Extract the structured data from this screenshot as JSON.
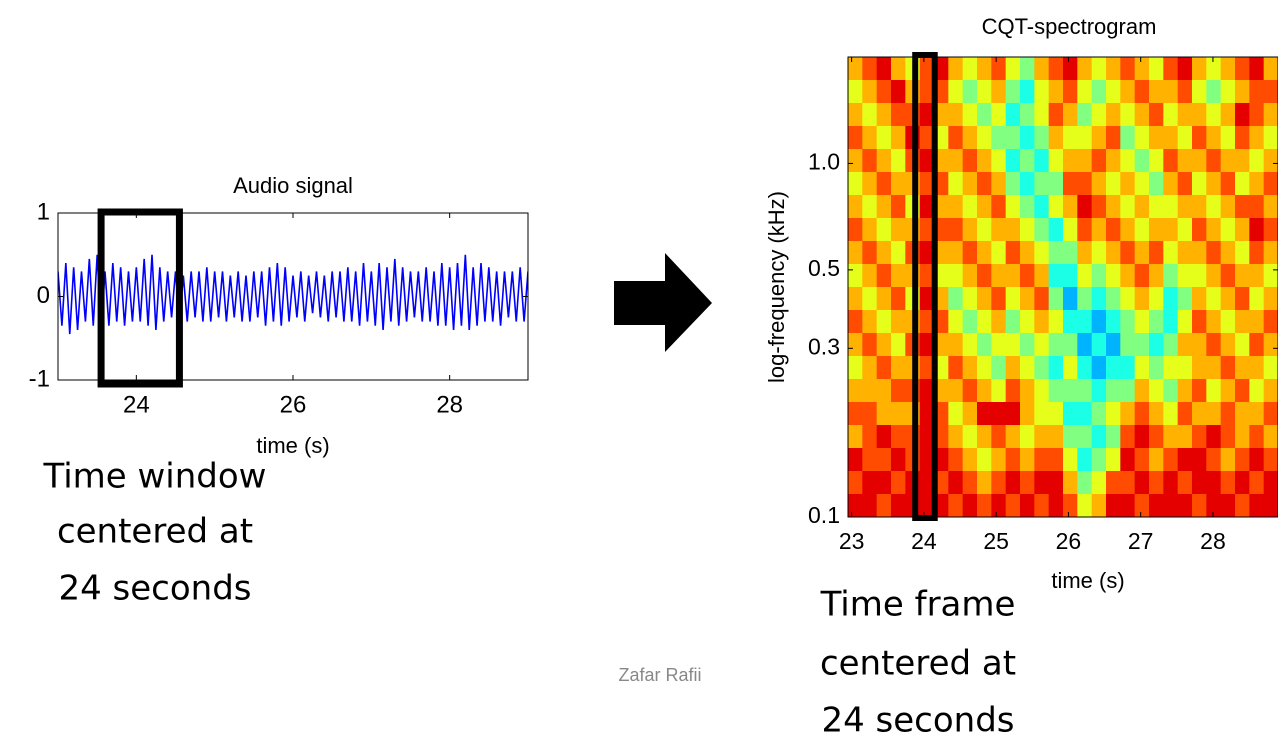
{
  "chart_data": [
    {
      "type": "line",
      "title": "Audio signal",
      "xlabel": "time (s)",
      "color": "#0000ff",
      "xlim": [
        23,
        29
      ],
      "xticks": [
        24,
        26,
        28
      ],
      "ylim": [
        -1,
        1
      ],
      "yticks": [
        -1,
        0,
        1
      ],
      "x": [
        23,
        23.05,
        23.1,
        23.15,
        23.2,
        23.25,
        23.3,
        23.35,
        23.4,
        23.45,
        23.5,
        23.55,
        23.6,
        23.65,
        23.7,
        23.75,
        23.8,
        23.85,
        23.9,
        23.95,
        24,
        24.05,
        24.1,
        24.15,
        24.2,
        24.25,
        24.3,
        24.35,
        24.4,
        24.45,
        24.5,
        24.55,
        24.6,
        24.65,
        24.7,
        24.75,
        24.8,
        24.85,
        24.9,
        24.95,
        25,
        25.05,
        25.1,
        25.15,
        25.2,
        25.25,
        25.3,
        25.35,
        25.4,
        25.45,
        25.5,
        25.55,
        25.6,
        25.65,
        25.7,
        25.75,
        25.8,
        25.85,
        25.9,
        25.95,
        26,
        26.05,
        26.1,
        26.15,
        26.2,
        26.25,
        26.3,
        26.35,
        26.4,
        26.45,
        26.5,
        26.55,
        26.6,
        26.65,
        26.7,
        26.75,
        26.8,
        26.85,
        26.9,
        26.95,
        27,
        27.05,
        27.1,
        27.15,
        27.2,
        27.25,
        27.3,
        27.35,
        27.4,
        27.45,
        27.5,
        27.55,
        27.6,
        27.65,
        27.7,
        27.75,
        27.8,
        27.85,
        27.9,
        27.95,
        28,
        28.05,
        28.1,
        28.15,
        28.2,
        28.25,
        28.3,
        28.35,
        28.4,
        28.45,
        28.5,
        28.55,
        28.6,
        28.65,
        28.7,
        28.75,
        28.8,
        28.85,
        28.9,
        28.95,
        29
      ],
      "values": [
        0.3,
        -0.35,
        0.4,
        -0.45,
        0.35,
        -0.4,
        0.3,
        -0.3,
        0.45,
        -0.35,
        0.5,
        -0.4,
        0.3,
        -0.35,
        0.4,
        -0.3,
        0.35,
        -0.35,
        0.3,
        -0.3,
        0.35,
        -0.3,
        0.45,
        -0.35,
        0.5,
        -0.4,
        0.35,
        -0.3,
        0.3,
        -0.25,
        0.3,
        -0.3,
        0.25,
        -0.3,
        0.3,
        -0.25,
        0.3,
        -0.3,
        0.35,
        -0.3,
        0.3,
        -0.25,
        0.3,
        -0.3,
        0.25,
        -0.25,
        0.3,
        -0.3,
        0.25,
        -0.3,
        0.3,
        -0.25,
        0.3,
        -0.35,
        0.35,
        -0.3,
        0.4,
        -0.35,
        0.35,
        -0.3,
        0.25,
        -0.25,
        0.3,
        -0.3,
        0.25,
        -0.2,
        0.3,
        -0.25,
        0.25,
        -0.3,
        0.3,
        -0.25,
        0.3,
        -0.3,
        0.35,
        -0.3,
        0.3,
        -0.35,
        0.4,
        -0.3,
        0.3,
        -0.35,
        0.4,
        -0.4,
        0.35,
        -0.3,
        0.45,
        -0.35,
        0.35,
        -0.3,
        0.3,
        -0.25,
        0.3,
        -0.3,
        0.35,
        -0.3,
        0.3,
        -0.35,
        0.4,
        -0.35,
        0.35,
        -0.4,
        0.4,
        -0.35,
        0.5,
        -0.4,
        0.35,
        -0.35,
        0.4,
        -0.3,
        0.35,
        -0.3,
        0.3,
        -0.35,
        0.3,
        -0.25,
        0.3,
        -0.3,
        0.35,
        -0.3,
        0.3
      ],
      "highlight_x": [
        23.55,
        24.55
      ],
      "annotation": [
        "Time window",
        "centered at",
        "24 seconds"
      ]
    },
    {
      "type": "heatmap",
      "title": "CQT-spectrogram",
      "xlabel": "time (s)",
      "ylabel": "log-frequency (kHz)",
      "xlim": [
        22.95,
        28.9
      ],
      "xticks": [
        23,
        24,
        25,
        26,
        27,
        28
      ],
      "ylim": [
        0.1,
        2
      ],
      "yscale": "log",
      "yticks": [
        0.1,
        0.3,
        0.5,
        {
          "value": 1,
          "label": "1.0"
        }
      ],
      "colormap": "jet",
      "zlim": [
        0,
        10
      ],
      "z": [
        [
          7,
          8,
          9,
          7,
          6,
          8,
          9,
          7,
          6,
          7,
          8,
          6,
          5,
          7,
          8,
          9,
          7,
          6,
          7,
          8,
          7,
          6,
          8,
          9,
          7,
          6,
          7,
          8,
          9,
          7
        ],
        [
          6,
          7,
          8,
          9,
          7,
          8,
          8,
          6,
          5,
          6,
          7,
          5,
          4,
          6,
          7,
          8,
          6,
          5,
          6,
          7,
          8,
          7,
          7,
          8,
          6,
          5,
          6,
          7,
          8,
          8
        ],
        [
          7,
          6,
          7,
          8,
          8,
          9,
          7,
          7,
          6,
          5,
          6,
          4,
          5,
          6,
          8,
          7,
          5,
          6,
          7,
          6,
          7,
          8,
          6,
          7,
          7,
          6,
          7,
          9,
          8,
          7
        ],
        [
          8,
          7,
          6,
          7,
          9,
          8,
          6,
          8,
          7,
          6,
          5,
          5,
          4,
          5,
          7,
          6,
          6,
          7,
          8,
          5,
          6,
          7,
          7,
          6,
          8,
          7,
          6,
          8,
          7,
          6
        ],
        [
          7,
          8,
          7,
          6,
          8,
          9,
          7,
          7,
          8,
          7,
          6,
          4,
          5,
          4,
          6,
          7,
          7,
          8,
          7,
          6,
          5,
          6,
          8,
          7,
          7,
          8,
          7,
          7,
          6,
          7
        ],
        [
          6,
          7,
          8,
          7,
          7,
          8,
          8,
          6,
          7,
          8,
          7,
          5,
          4,
          5,
          5,
          8,
          8,
          7,
          6,
          7,
          6,
          5,
          7,
          8,
          6,
          7,
          8,
          6,
          7,
          8
        ],
        [
          7,
          6,
          7,
          8,
          6,
          9,
          7,
          7,
          6,
          7,
          8,
          6,
          5,
          4,
          6,
          7,
          9,
          8,
          7,
          6,
          7,
          6,
          6,
          7,
          7,
          6,
          7,
          8,
          8,
          7
        ],
        [
          8,
          7,
          6,
          7,
          7,
          8,
          8,
          8,
          7,
          6,
          7,
          7,
          6,
          5,
          4,
          6,
          8,
          7,
          8,
          7,
          6,
          7,
          7,
          6,
          8,
          7,
          6,
          7,
          9,
          8
        ],
        [
          7,
          8,
          7,
          6,
          8,
          9,
          7,
          7,
          8,
          7,
          6,
          8,
          7,
          6,
          5,
          5,
          7,
          6,
          7,
          8,
          7,
          8,
          6,
          7,
          7,
          8,
          7,
          6,
          8,
          7
        ],
        [
          6,
          7,
          8,
          7,
          7,
          8,
          6,
          6,
          7,
          8,
          7,
          7,
          8,
          7,
          4,
          4,
          6,
          5,
          6,
          7,
          8,
          7,
          5,
          6,
          6,
          7,
          8,
          7,
          7,
          6
        ],
        [
          7,
          6,
          7,
          8,
          6,
          9,
          7,
          5,
          6,
          7,
          8,
          6,
          7,
          8,
          5,
          3,
          5,
          4,
          5,
          6,
          7,
          6,
          4,
          5,
          7,
          6,
          7,
          8,
          6,
          7
        ],
        [
          8,
          7,
          6,
          7,
          7,
          8,
          8,
          6,
          5,
          6,
          7,
          5,
          6,
          7,
          6,
          4,
          4,
          3,
          4,
          5,
          6,
          5,
          4,
          6,
          8,
          7,
          6,
          7,
          7,
          8
        ],
        [
          7,
          8,
          7,
          6,
          8,
          9,
          7,
          7,
          6,
          5,
          6,
          6,
          5,
          6,
          5,
          5,
          3,
          4,
          3,
          5,
          5,
          4,
          5,
          7,
          7,
          8,
          7,
          6,
          8,
          7
        ],
        [
          6,
          7,
          8,
          7,
          7,
          8,
          6,
          8,
          7,
          6,
          5,
          7,
          6,
          5,
          4,
          6,
          4,
          3,
          4,
          4,
          6,
          5,
          6,
          6,
          7,
          7,
          8,
          7,
          7,
          6
        ],
        [
          7,
          7,
          7,
          8,
          8,
          9,
          7,
          7,
          8,
          7,
          6,
          8,
          7,
          6,
          5,
          5,
          5,
          4,
          5,
          5,
          7,
          6,
          5,
          7,
          8,
          6,
          7,
          8,
          6,
          7
        ],
        [
          8,
          8,
          7,
          7,
          7,
          9,
          8,
          6,
          7,
          9,
          9,
          9,
          7,
          6,
          6,
          4,
          4,
          5,
          6,
          7,
          8,
          7,
          6,
          8,
          7,
          7,
          8,
          7,
          7,
          8
        ],
        [
          7,
          8,
          9,
          8,
          8,
          9,
          8,
          7,
          6,
          7,
          8,
          7,
          6,
          7,
          7,
          5,
          5,
          4,
          5,
          8,
          9,
          8,
          7,
          7,
          8,
          9,
          8,
          7,
          8,
          7
        ],
        [
          9,
          8,
          8,
          9,
          8,
          9,
          9,
          8,
          7,
          6,
          7,
          8,
          7,
          8,
          8,
          6,
          4,
          5,
          6,
          9,
          8,
          7,
          8,
          9,
          9,
          8,
          7,
          8,
          9,
          8
        ],
        [
          8,
          9,
          9,
          8,
          9,
          9,
          8,
          9,
          8,
          7,
          8,
          9,
          8,
          9,
          9,
          7,
          5,
          6,
          8,
          8,
          9,
          8,
          9,
          8,
          9,
          9,
          8,
          9,
          8,
          9
        ],
        [
          9,
          9,
          8,
          9,
          9,
          9,
          9,
          8,
          9,
          8,
          9,
          8,
          9,
          8,
          9,
          8,
          6,
          7,
          9,
          9,
          8,
          9,
          9,
          9,
          8,
          9,
          9,
          8,
          9,
          9
        ]
      ],
      "highlight_x": [
        23.88,
        24.15
      ],
      "annotation": [
        "Time frame",
        "centered at",
        "24 seconds"
      ]
    }
  ],
  "footer": "Zafar Rafii"
}
